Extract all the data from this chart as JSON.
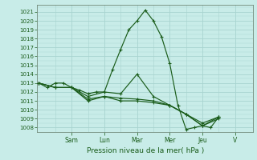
{
  "title": "",
  "xlabel": "Pression niveau de la mer( hPa )",
  "bg_color": "#c8ece8",
  "grid_color": "#a8d4d0",
  "line_color": "#1a5c1a",
  "ylim": [
    1007.5,
    1021.8
  ],
  "yticks": [
    1008,
    1009,
    1010,
    1011,
    1012,
    1013,
    1014,
    1015,
    1016,
    1017,
    1018,
    1019,
    1020,
    1021
  ],
  "day_labels": [
    "Sam",
    "Lun",
    "Mar",
    "Mer",
    "Jeu",
    "V"
  ],
  "day_positions": [
    1.0,
    2.0,
    3.0,
    4.0,
    5.0,
    6.0
  ],
  "minor_xgrid_positions": [
    0.5,
    1.5,
    2.5,
    3.5,
    4.5,
    5.5
  ],
  "xlim": [
    -0.05,
    6.55
  ],
  "series": [
    {
      "x": [
        0.0,
        0.25,
        0.5,
        0.75,
        1.0,
        1.25,
        1.5,
        1.75,
        2.0,
        2.25,
        2.5,
        2.75,
        3.0,
        3.25,
        3.5,
        3.75,
        4.0,
        4.25,
        4.5,
        4.75,
        5.0,
        5.25,
        5.5
      ],
      "y": [
        1013.0,
        1012.5,
        1013.0,
        1013.0,
        1012.5,
        1012.2,
        1011.8,
        1012.0,
        1012.0,
        1014.5,
        1016.8,
        1019.0,
        1020.0,
        1021.2,
        1020.0,
        1018.2,
        1015.2,
        1010.5,
        1007.8,
        1008.0,
        1008.2,
        1008.0,
        1009.2
      ]
    },
    {
      "x": [
        0.0,
        0.5,
        1.0,
        1.5,
        2.0,
        2.5,
        3.0,
        3.5,
        4.0,
        4.5,
        5.0,
        5.5
      ],
      "y": [
        1013.0,
        1012.5,
        1012.5,
        1011.5,
        1012.0,
        1011.8,
        1014.0,
        1011.5,
        1010.5,
        1009.5,
        1008.2,
        1009.2
      ]
    },
    {
      "x": [
        0.0,
        0.5,
        1.0,
        1.5,
        2.0,
        2.5,
        3.0,
        3.5,
        4.0,
        4.5,
        5.0,
        5.5
      ],
      "y": [
        1013.0,
        1012.5,
        1012.5,
        1011.2,
        1011.5,
        1011.3,
        1011.2,
        1011.0,
        1010.5,
        1009.5,
        1008.5,
        1009.2
      ]
    },
    {
      "x": [
        0.0,
        0.5,
        1.0,
        1.5,
        2.0,
        2.5,
        3.0,
        3.5,
        4.0,
        4.5,
        5.0,
        5.5
      ],
      "y": [
        1013.0,
        1012.5,
        1012.5,
        1011.0,
        1011.5,
        1011.0,
        1011.0,
        1010.8,
        1010.5,
        1009.5,
        1008.2,
        1009.0
      ]
    }
  ]
}
